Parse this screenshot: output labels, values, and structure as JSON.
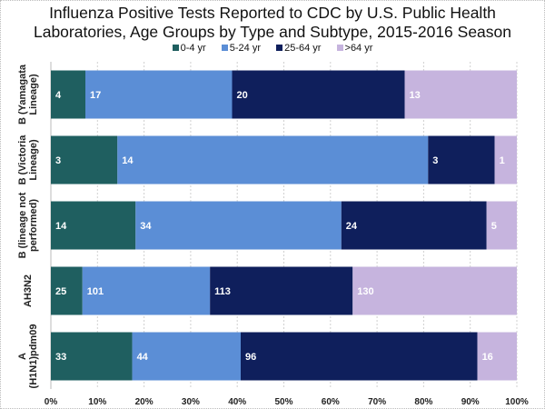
{
  "chart_data": {
    "type": "bar",
    "orientation": "horizontal",
    "stacking": "percent",
    "title": "Influenza Positive Tests Reported to CDC by U.S. Public Health Laboratories, Age Groups by Type and Subtype, 2015-2016 Season",
    "title_lines": [
      "Influenza Positive Tests Reported to CDC by U.S. Public Health",
      "Laboratories, Age Groups by Type and Subtype, 2015-2016 Season"
    ],
    "categories": [
      [
        "B (Yamagata",
        "Lineage)"
      ],
      [
        "B (Victoria",
        "Lineage)"
      ],
      [
        "B (lineage not",
        "performed)"
      ],
      [
        "AH3N2"
      ],
      [
        "A",
        "(H1N1)pdm09"
      ]
    ],
    "series": [
      {
        "name": "0-4 yr",
        "color": "#1f5f60",
        "values": [
          4,
          3,
          14,
          25,
          33
        ]
      },
      {
        "name": "5-24 yr",
        "color": "#5b8ed6",
        "values": [
          17,
          14,
          34,
          101,
          44
        ]
      },
      {
        "name": "25-64 yr",
        "color": "#0f1f5c",
        "values": [
          20,
          3,
          24,
          113,
          96
        ]
      },
      {
        "name": ">64 yr",
        "color": "#c6b4de",
        "values": [
          13,
          1,
          5,
          130,
          16
        ]
      }
    ],
    "xticks": [
      "0%",
      "10%",
      "20%",
      "30%",
      "40%",
      "50%",
      "60%",
      "70%",
      "80%",
      "90%",
      "100%"
    ],
    "xlim": [
      0,
      100
    ],
    "grid": true,
    "legend": "top"
  }
}
